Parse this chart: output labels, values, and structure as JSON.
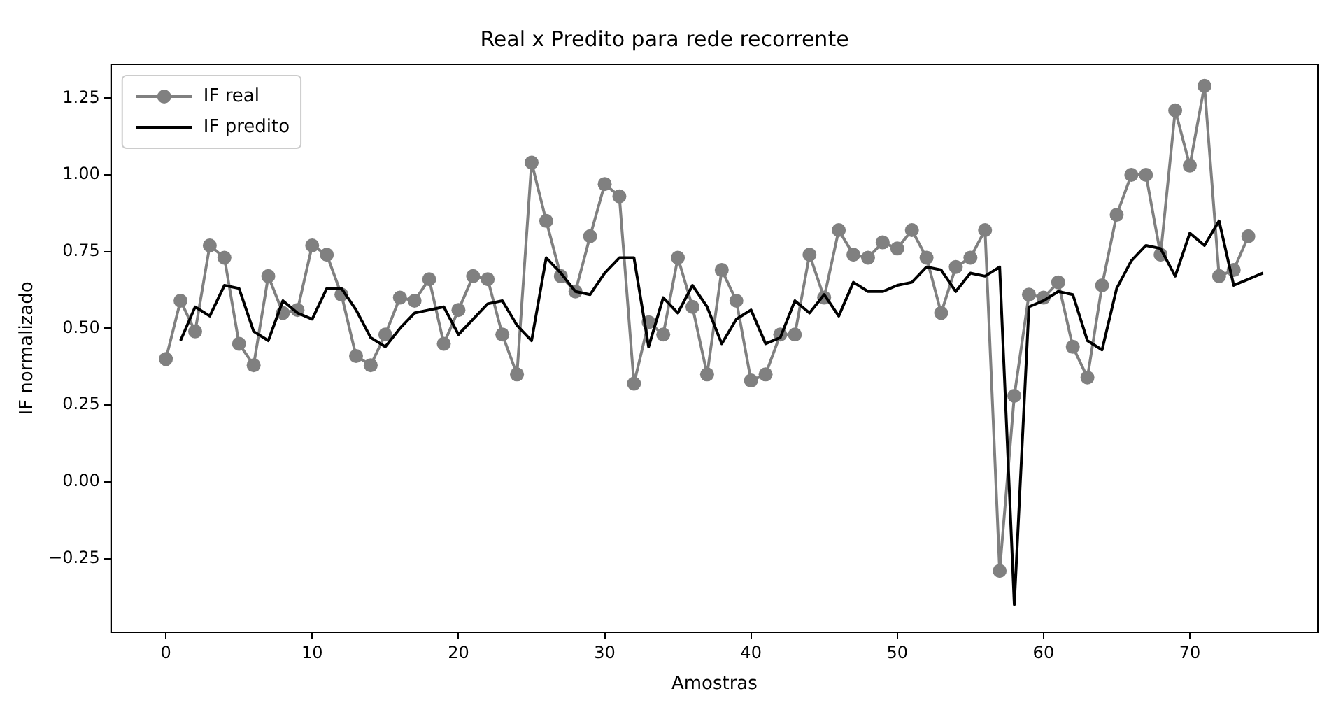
{
  "chart_data": {
    "type": "line",
    "title": "Real x Predito para rede recorrente",
    "xlabel": "Amostras",
    "ylabel": "IF normalizado",
    "xlim": [
      -3.75,
      78.75
    ],
    "ylim": [
      -0.49,
      1.36
    ],
    "xticks": [
      0,
      10,
      20,
      30,
      40,
      50,
      60,
      70
    ],
    "yticks": [
      {
        "value": -0.25,
        "label": "−0.25"
      },
      {
        "value": 0,
        "label": "0.00"
      },
      {
        "value": 0.25,
        "label": "0.25"
      },
      {
        "value": 0.5,
        "label": "0.50"
      },
      {
        "value": 0.75,
        "label": "0.75"
      },
      {
        "value": 1,
        "label": "1.00"
      },
      {
        "value": 1.25,
        "label": "1.25"
      }
    ],
    "grid": false,
    "legend": "top left",
    "series": [
      {
        "name": "IF real",
        "color": "#808080",
        "marker": "circle",
        "x": [
          0,
          1,
          2,
          3,
          4,
          5,
          6,
          7,
          8,
          9,
          10,
          11,
          12,
          13,
          14,
          15,
          16,
          17,
          18,
          19,
          20,
          21,
          22,
          23,
          24,
          25,
          26,
          27,
          28,
          29,
          30,
          31,
          32,
          33,
          34,
          35,
          36,
          37,
          38,
          39,
          40,
          41,
          42,
          43,
          44,
          45,
          46,
          47,
          48,
          49,
          50,
          51,
          52,
          53,
          54,
          55,
          56,
          57,
          58,
          59,
          60,
          61,
          62,
          63,
          64,
          65,
          66,
          67,
          68,
          69,
          70,
          71,
          72,
          73,
          74
        ],
        "values": [
          0.4,
          0.59,
          0.49,
          0.77,
          0.73,
          0.45,
          0.38,
          0.67,
          0.55,
          0.56,
          0.77,
          0.74,
          0.61,
          0.41,
          0.38,
          0.48,
          0.6,
          0.59,
          0.66,
          0.45,
          0.56,
          0.67,
          0.66,
          0.48,
          0.35,
          1.04,
          0.85,
          0.67,
          0.62,
          0.8,
          0.97,
          0.93,
          0.32,
          0.52,
          0.48,
          0.73,
          0.57,
          0.35,
          0.69,
          0.59,
          0.33,
          0.35,
          0.48,
          0.48,
          0.74,
          0.6,
          0.82,
          0.74,
          0.73,
          0.78,
          0.76,
          0.82,
          0.73,
          0.55,
          0.7,
          0.73,
          0.82,
          -0.29,
          0.28,
          0.61,
          0.6,
          0.65,
          0.44,
          0.34,
          0.64,
          0.87,
          1.0,
          1.0,
          0.74,
          1.21,
          1.03,
          1.29,
          0.67,
          0.69,
          0.8
        ]
      },
      {
        "name": "IF predito",
        "color": "#000000",
        "marker": "none",
        "x": [
          1,
          2,
          3,
          4,
          5,
          6,
          7,
          8,
          9,
          10,
          11,
          12,
          13,
          14,
          15,
          16,
          17,
          18,
          19,
          20,
          21,
          22,
          23,
          24,
          25,
          26,
          27,
          28,
          29,
          30,
          31,
          32,
          33,
          34,
          35,
          36,
          37,
          38,
          39,
          40,
          41,
          42,
          43,
          44,
          45,
          46,
          47,
          48,
          49,
          50,
          51,
          52,
          53,
          54,
          55,
          56,
          57,
          58,
          59,
          60,
          61,
          62,
          63,
          64,
          65,
          66,
          67,
          68,
          69,
          70,
          71,
          72,
          73,
          74,
          75
        ],
        "values": [
          0.46,
          0.57,
          0.54,
          0.64,
          0.63,
          0.49,
          0.46,
          0.59,
          0.55,
          0.53,
          0.63,
          0.63,
          0.56,
          0.47,
          0.44,
          0.5,
          0.55,
          0.56,
          0.57,
          0.48,
          0.53,
          0.58,
          0.59,
          0.51,
          0.46,
          0.73,
          0.68,
          0.62,
          0.61,
          0.68,
          0.73,
          0.73,
          0.44,
          0.6,
          0.55,
          0.64,
          0.57,
          0.45,
          0.53,
          0.56,
          0.45,
          0.47,
          0.59,
          0.55,
          0.61,
          0.54,
          0.65,
          0.62,
          0.62,
          0.64,
          0.65,
          0.7,
          0.69,
          0.62,
          0.68,
          0.67,
          0.7,
          -0.4,
          0.57,
          0.59,
          0.62,
          0.61,
          0.46,
          0.43,
          0.63,
          0.72,
          0.77,
          0.76,
          0.67,
          0.81,
          0.77,
          0.85,
          0.64,
          0.66,
          0.68
        ]
      }
    ]
  }
}
